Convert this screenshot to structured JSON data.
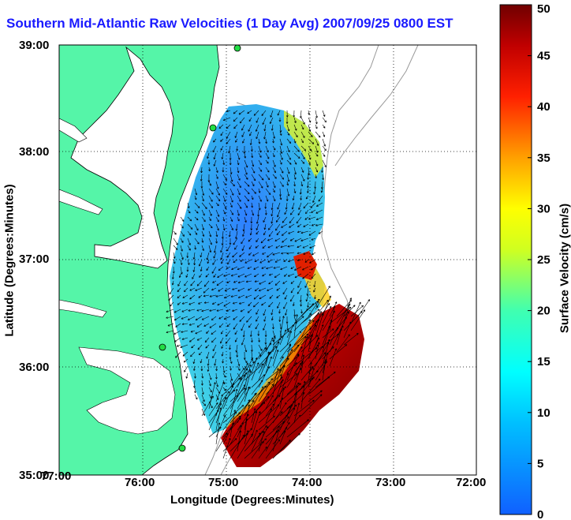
{
  "title": "Southern Mid-Atlantic Raw Velocities (1 Day Avg) 2007/09/25 0800 EST",
  "map": {
    "xlabel": "Longitude (Degrees:Minutes)",
    "ylabel": "Latitude (Degrees:Minutes)",
    "x_ticks": [
      "77:00",
      "76:00",
      "75:00",
      "74:00",
      "73:00",
      "72:00"
    ],
    "y_ticks": [
      "39:00",
      "38:00",
      "37:00",
      "36:00",
      "35:00"
    ],
    "land_color": "#55f5a8",
    "grid": "dotted"
  },
  "colorbar": {
    "label": "Surface Velocity (cm/s)",
    "ticks": [
      "0",
      "5",
      "10",
      "15",
      "20",
      "25",
      "30",
      "35",
      "40",
      "45",
      "50"
    ],
    "range": [
      0,
      50
    ],
    "colormap": [
      "#0000ff",
      "#00ffff",
      "#ffff00",
      "#ff0000",
      "#800000"
    ]
  },
  "stations": [
    "station-1",
    "station-2",
    "station-3",
    "station-4"
  ]
}
